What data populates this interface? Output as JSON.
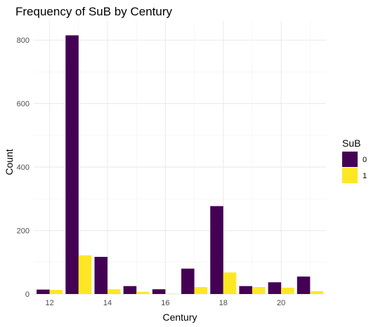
{
  "chart_data": {
    "type": "bar",
    "title": "Frequency of SuB by Century",
    "xlabel": "Century",
    "ylabel": "Count",
    "x_ticks": [
      12,
      14,
      16,
      18,
      20
    ],
    "y_ticks": [
      0,
      200,
      400,
      600,
      800
    ],
    "ylim": [
      0,
      860
    ],
    "xlim": [
      11.45,
      21.55
    ],
    "grid": true,
    "legend_title": "SuB",
    "legend_position": "right",
    "categories": [
      12,
      13,
      14,
      15,
      16,
      17,
      18,
      19,
      20,
      21
    ],
    "series": [
      {
        "name": "0",
        "color": "#440154",
        "values": [
          14,
          815,
          117,
          25,
          15,
          80,
          277,
          25,
          37,
          55
        ]
      },
      {
        "name": "1",
        "color": "#FDE725",
        "values": [
          13,
          122,
          15,
          7,
          1,
          22,
          68,
          22,
          20,
          9
        ]
      }
    ]
  }
}
